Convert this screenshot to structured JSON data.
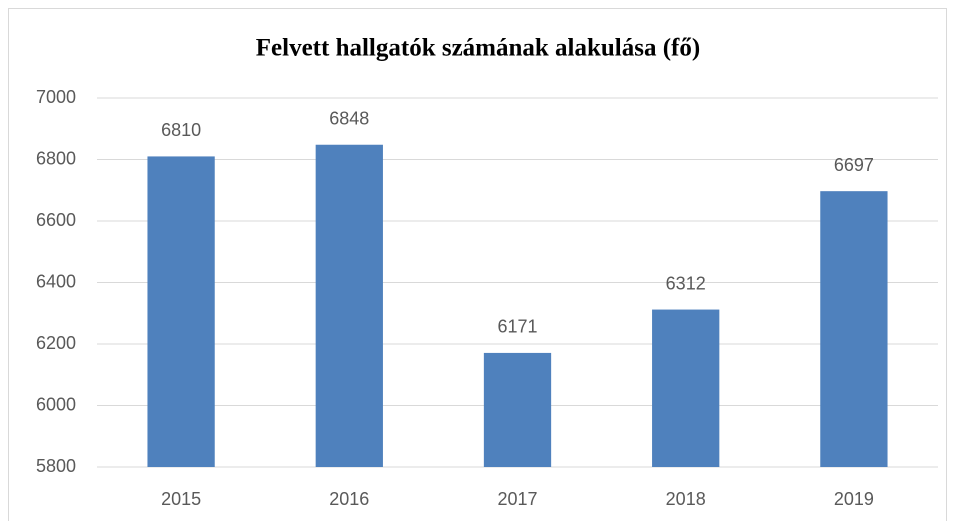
{
  "chart_data": {
    "type": "bar",
    "title": "Felvett hallgatók számának alakulása (fő)",
    "categories": [
      "2015",
      "2016",
      "2017",
      "2018",
      "2019"
    ],
    "values": [
      6810,
      6848,
      6171,
      6312,
      6697
    ],
    "color": "#4f81bd",
    "ylim": [
      5800,
      7000
    ],
    "yticks": [
      5800,
      6000,
      6200,
      6400,
      6600,
      6800,
      7000
    ],
    "grid": true
  }
}
